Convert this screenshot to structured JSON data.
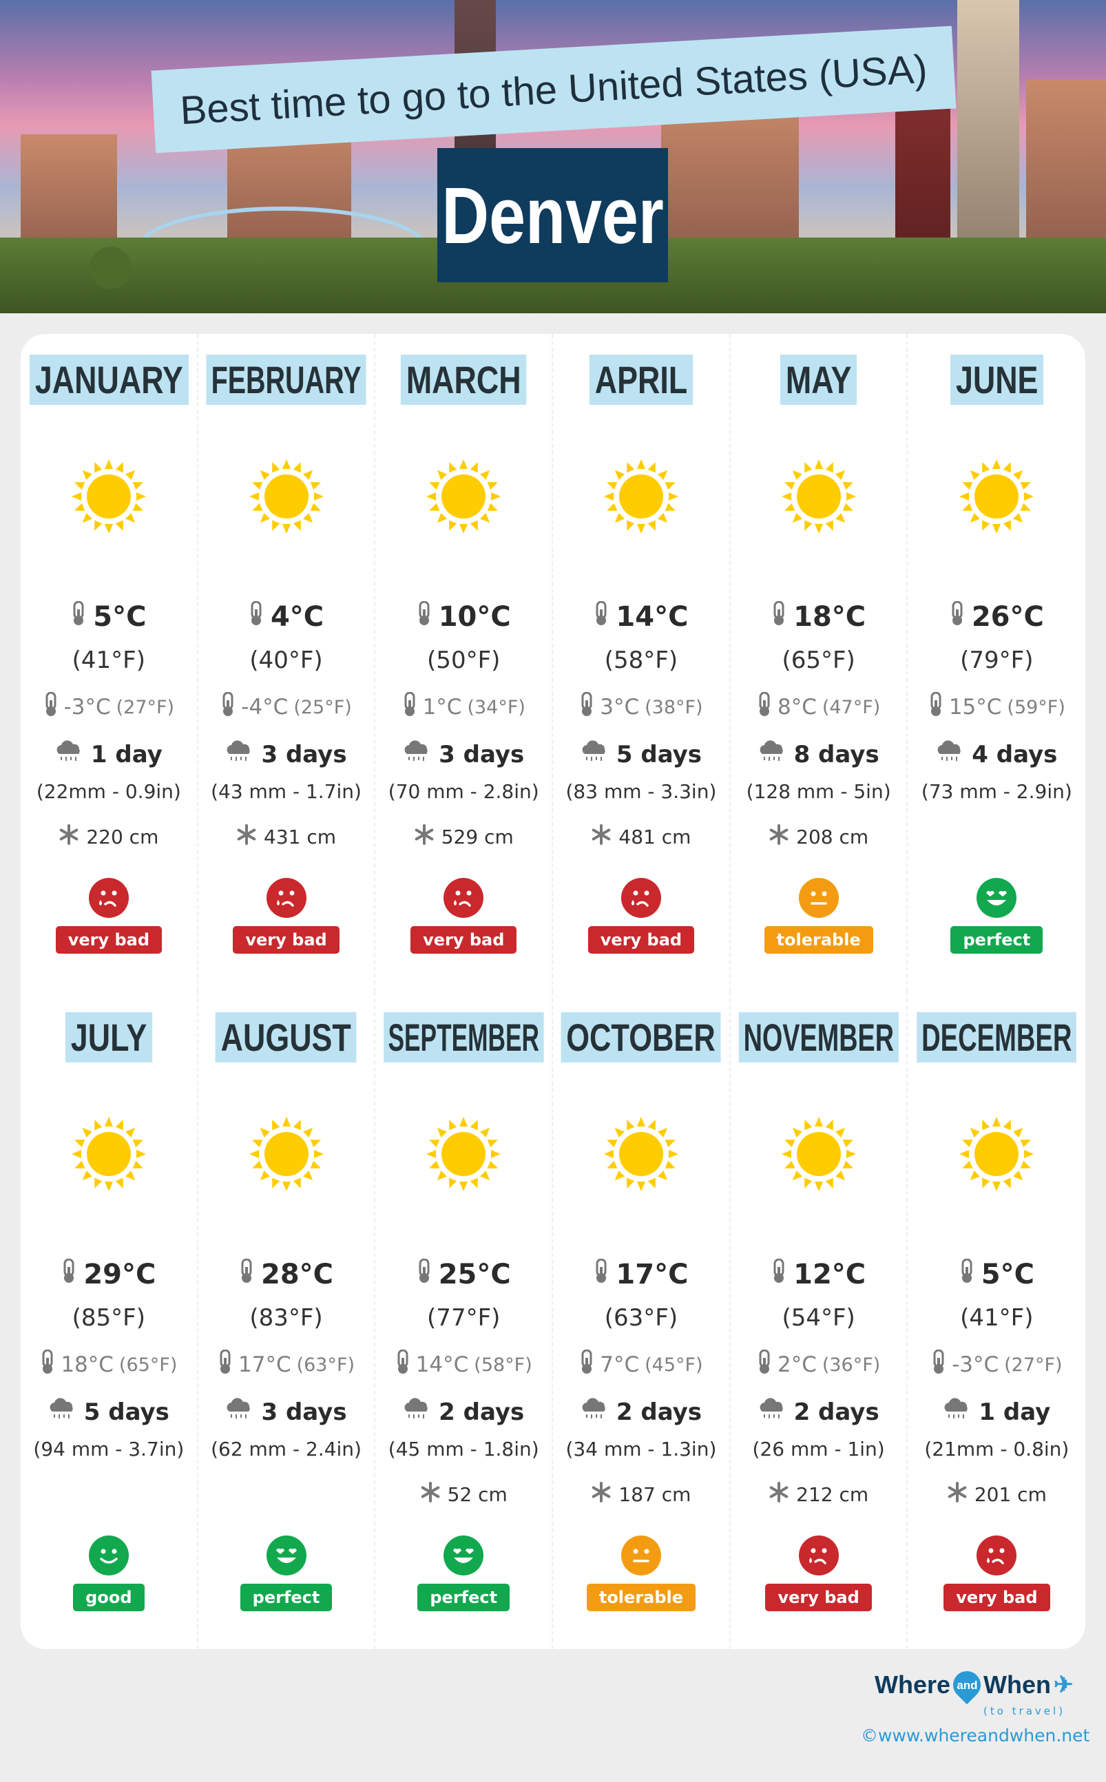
{
  "header": {
    "title": "Best time to go to the United States (USA)",
    "city": "Denver"
  },
  "colors": {
    "very bad": "#c9282d",
    "tolerable": "#f39c12",
    "perfect": "#11a84e",
    "good": "#11a84e",
    "banner": "#bde3f2",
    "city_box": "#0f3b5c",
    "sun": "#ffcc00"
  },
  "months": [
    {
      "name": "JANUARY",
      "high_c": "5°C",
      "high_f": "(41°F)",
      "low_c": "-3°C",
      "low_f": "(27°F)",
      "rain_days": "1 day",
      "rain_amount": "(22mm - 0.9in)",
      "snow": "220 cm",
      "rating": "very bad"
    },
    {
      "name": "FEBRUARY",
      "high_c": "4°C",
      "high_f": "(40°F)",
      "low_c": "-4°C",
      "low_f": "(25°F)",
      "rain_days": "3 days",
      "rain_amount": "(43 mm - 1.7in)",
      "snow": "431 cm",
      "rating": "very bad"
    },
    {
      "name": "MARCH",
      "high_c": "10°C",
      "high_f": "(50°F)",
      "low_c": "1°C",
      "low_f": "(34°F)",
      "rain_days": "3 days",
      "rain_amount": "(70 mm - 2.8in)",
      "snow": "529 cm",
      "rating": "very bad"
    },
    {
      "name": "APRIL",
      "high_c": "14°C",
      "high_f": "(58°F)",
      "low_c": "3°C",
      "low_f": "(38°F)",
      "rain_days": "5 days",
      "rain_amount": "(83 mm - 3.3in)",
      "snow": "481 cm",
      "rating": "very bad"
    },
    {
      "name": "MAY",
      "high_c": "18°C",
      "high_f": "(65°F)",
      "low_c": "8°C",
      "low_f": "(47°F)",
      "rain_days": "8 days",
      "rain_amount": "(128 mm - 5in)",
      "snow": "208 cm",
      "rating": "tolerable"
    },
    {
      "name": "JUNE",
      "high_c": "26°C",
      "high_f": "(79°F)",
      "low_c": "15°C",
      "low_f": "(59°F)",
      "rain_days": "4 days",
      "rain_amount": "(73 mm - 2.9in)",
      "snow": null,
      "rating": "perfect"
    },
    {
      "name": "JULY",
      "high_c": "29°C",
      "high_f": "(85°F)",
      "low_c": "18°C",
      "low_f": "(65°F)",
      "rain_days": "5 days",
      "rain_amount": "(94 mm - 3.7in)",
      "snow": null,
      "rating": "good"
    },
    {
      "name": "AUGUST",
      "high_c": "28°C",
      "high_f": "(83°F)",
      "low_c": "17°C",
      "low_f": "(63°F)",
      "rain_days": "3 days",
      "rain_amount": "(62 mm - 2.4in)",
      "snow": null,
      "rating": "perfect"
    },
    {
      "name": "SEPTEMBER",
      "high_c": "25°C",
      "high_f": "(77°F)",
      "low_c": "14°C",
      "low_f": "(58°F)",
      "rain_days": "2 days",
      "rain_amount": "(45 mm - 1.8in)",
      "snow": "52 cm",
      "rating": "perfect"
    },
    {
      "name": "OCTOBER",
      "high_c": "17°C",
      "high_f": "(63°F)",
      "low_c": "7°C",
      "low_f": "(45°F)",
      "rain_days": "2 days",
      "rain_amount": "(34 mm - 1.3in)",
      "snow": "187 cm",
      "rating": "tolerable"
    },
    {
      "name": "NOVEMBER",
      "high_c": "12°C",
      "high_f": "(54°F)",
      "low_c": "2°C",
      "low_f": "(36°F)",
      "rain_days": "2 days",
      "rain_amount": "(26 mm - 1in)",
      "snow": "212 cm",
      "rating": "very bad"
    },
    {
      "name": "DECEMBER",
      "high_c": "5°C",
      "high_f": "(41°F)",
      "low_c": "-3°C",
      "low_f": "(27°F)",
      "rain_days": "1 day",
      "rain_amount": "(21mm - 0.8in)",
      "snow": "201 cm",
      "rating": "very bad"
    }
  ],
  "icons": {
    "sun": "sun-icon",
    "thermometer": "thermometer-icon",
    "rain": "rain-cloud-icon",
    "snow": "snowflake-icon",
    "very bad": "crying-face-icon",
    "tolerable": "neutral-face-icon",
    "good": "smiling-face-icon",
    "perfect": "heart-eyes-face-icon"
  },
  "footer": {
    "logo_where": "Where",
    "logo_and": "and",
    "logo_when": "When",
    "logo_tagline": "(to travel)",
    "site": "©www.whereandwhen.net"
  }
}
